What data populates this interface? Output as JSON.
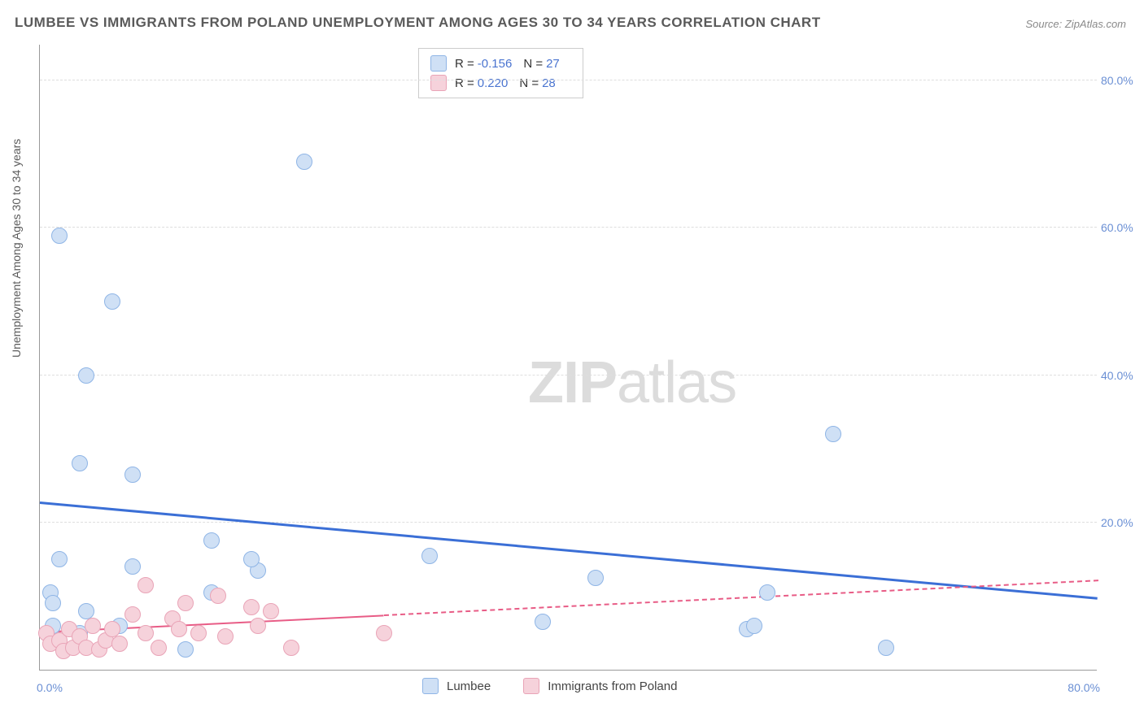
{
  "title": "LUMBEE VS IMMIGRANTS FROM POLAND UNEMPLOYMENT AMONG AGES 30 TO 34 YEARS CORRELATION CHART",
  "source": "Source: ZipAtlas.com",
  "ylabel": "Unemployment Among Ages 30 to 34 years",
  "watermark_bold": "ZIP",
  "watermark_light": "atlas",
  "chart": {
    "type": "scatter",
    "xlim": [
      0,
      80
    ],
    "ylim": [
      0,
      85
    ],
    "yticks": [
      20,
      40,
      60,
      80
    ],
    "ytick_labels": [
      "20.0%",
      "40.0%",
      "60.0%",
      "80.0%"
    ],
    "xticks_labels": {
      "left": "0.0%",
      "right": "80.0%"
    },
    "grid_color": "#dedede",
    "background_color": "#ffffff",
    "axis_color": "#9a9a9a",
    "tick_label_color": "#6a8fd4",
    "axis_label_color": "#5a5a5a",
    "marker_radius": 10,
    "series": [
      {
        "name": "Lumbee",
        "fill": "#cfe0f5",
        "stroke": "#8fb5e6",
        "R": "-0.156",
        "N": "27",
        "trend": {
          "x1": 0,
          "y1": 22.5,
          "x2": 80,
          "y2": 9.5,
          "color": "#3b6fd6",
          "width": 3,
          "dash": false,
          "solid_until_x": 80
        },
        "points": [
          {
            "x": 1.5,
            "y": 59.0
          },
          {
            "x": 20.0,
            "y": 69.0
          },
          {
            "x": 5.5,
            "y": 50.0
          },
          {
            "x": 3.5,
            "y": 40.0
          },
          {
            "x": 3.0,
            "y": 28.0
          },
          {
            "x": 7.0,
            "y": 26.5
          },
          {
            "x": 60.0,
            "y": 32.0
          },
          {
            "x": 1.5,
            "y": 15.0
          },
          {
            "x": 13.0,
            "y": 17.5
          },
          {
            "x": 7.0,
            "y": 14.0
          },
          {
            "x": 16.5,
            "y": 13.5
          },
          {
            "x": 16.0,
            "y": 15.0
          },
          {
            "x": 29.5,
            "y": 15.5
          },
          {
            "x": 42.0,
            "y": 12.5
          },
          {
            "x": 55.0,
            "y": 10.5
          },
          {
            "x": 0.8,
            "y": 10.5
          },
          {
            "x": 1.0,
            "y": 6.0
          },
          {
            "x": 1.0,
            "y": 9.0
          },
          {
            "x": 3.5,
            "y": 8.0
          },
          {
            "x": 3.0,
            "y": 5.0
          },
          {
            "x": 6.0,
            "y": 6.0
          },
          {
            "x": 11.0,
            "y": 2.8
          },
          {
            "x": 13.0,
            "y": 10.5
          },
          {
            "x": 38.0,
            "y": 6.5
          },
          {
            "x": 53.5,
            "y": 5.5
          },
          {
            "x": 64.0,
            "y": 3.0
          },
          {
            "x": 54.0,
            "y": 6.0
          }
        ]
      },
      {
        "name": "Immigrants from Poland",
        "fill": "#f6d2db",
        "stroke": "#e9a4b7",
        "R": "0.220",
        "N": "28",
        "trend": {
          "x1": 0,
          "y1": 5.0,
          "x2": 80,
          "y2": 12.0,
          "color": "#e85c86",
          "width": 2,
          "dash": true,
          "solid_until_x": 26
        },
        "points": [
          {
            "x": 0.5,
            "y": 5.0
          },
          {
            "x": 0.8,
            "y": 3.5
          },
          {
            "x": 1.5,
            "y": 4.0
          },
          {
            "x": 1.8,
            "y": 2.5
          },
          {
            "x": 2.2,
            "y": 5.5
          },
          {
            "x": 2.5,
            "y": 3.0
          },
          {
            "x": 3.0,
            "y": 4.5
          },
          {
            "x": 3.5,
            "y": 3.0
          },
          {
            "x": 4.0,
            "y": 6.0
          },
          {
            "x": 4.5,
            "y": 2.8
          },
          {
            "x": 5.0,
            "y": 4.0
          },
          {
            "x": 5.5,
            "y": 5.5
          },
          {
            "x": 6.0,
            "y": 3.5
          },
          {
            "x": 7.0,
            "y": 7.5
          },
          {
            "x": 8.0,
            "y": 11.5
          },
          {
            "x": 8.0,
            "y": 5.0
          },
          {
            "x": 9.0,
            "y": 3.0
          },
          {
            "x": 10.0,
            "y": 7.0
          },
          {
            "x": 10.5,
            "y": 5.5
          },
          {
            "x": 11.0,
            "y": 9.0
          },
          {
            "x": 12.0,
            "y": 5.0
          },
          {
            "x": 13.5,
            "y": 10.0
          },
          {
            "x": 14.0,
            "y": 4.5
          },
          {
            "x": 16.0,
            "y": 8.5
          },
          {
            "x": 16.5,
            "y": 6.0
          },
          {
            "x": 17.5,
            "y": 8.0
          },
          {
            "x": 19.0,
            "y": 3.0
          },
          {
            "x": 26.0,
            "y": 5.0
          }
        ]
      }
    ]
  },
  "legend_top": {
    "r_label": "R =",
    "n_label": "N ="
  },
  "legend_bottom": {
    "s1_label": "Lumbee",
    "s2_label": "Immigrants from Poland"
  }
}
